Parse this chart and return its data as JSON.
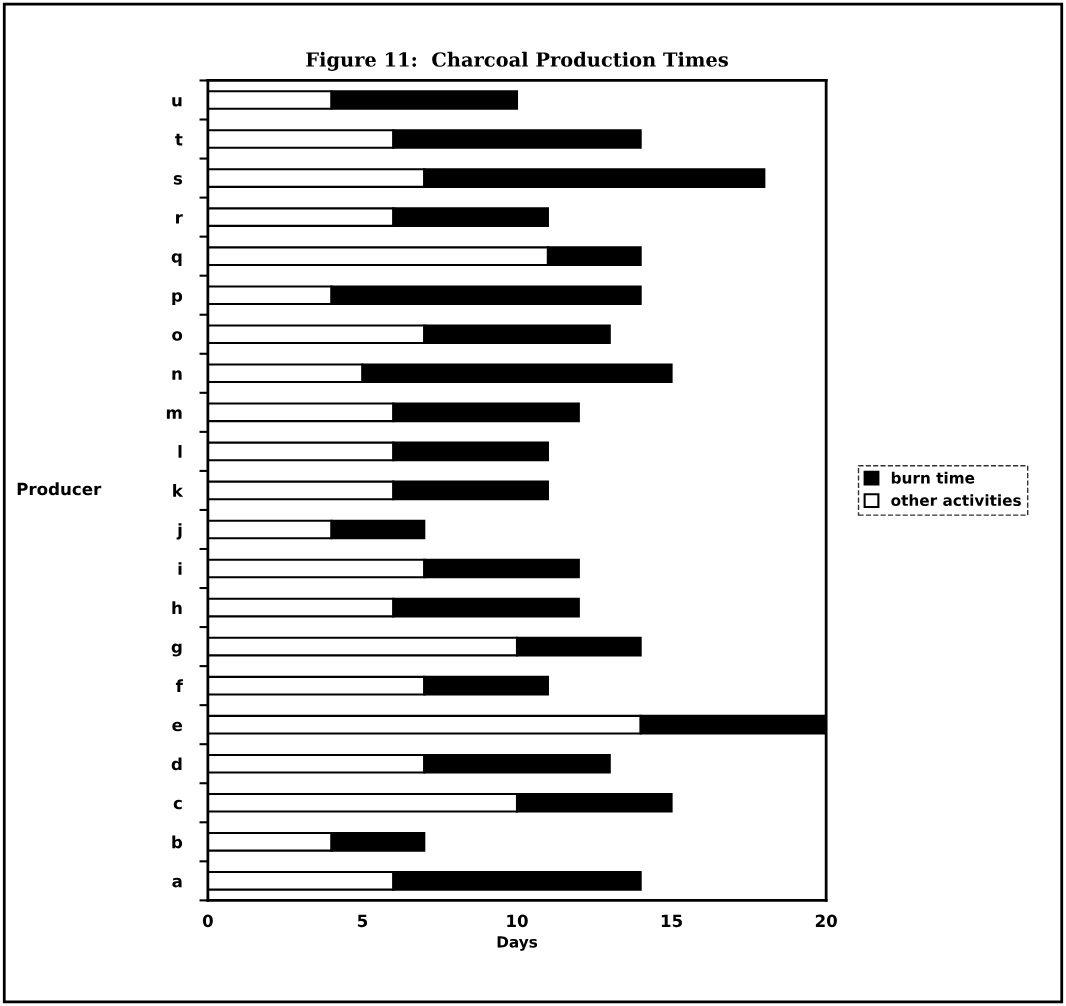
{
  "chart_data": {
    "type": "bar",
    "orientation": "horizontal",
    "stacked": true,
    "title": "Figure 11:  Charcoal Production Times",
    "xlabel": "Days",
    "ylabel": "Producer",
    "categories": [
      "u",
      "t",
      "s",
      "r",
      "q",
      "p",
      "o",
      "n",
      "m",
      "l",
      "k",
      "j",
      "i",
      "h",
      "g",
      "f",
      "e",
      "d",
      "c",
      "b",
      "a"
    ],
    "series": [
      {
        "name": "other activities",
        "color": "#ffffff",
        "values": [
          4,
          6,
          7,
          6,
          11,
          4,
          7,
          5,
          6,
          6,
          6,
          4,
          7,
          6,
          10,
          7,
          14,
          7,
          10,
          4,
          6
        ]
      },
      {
        "name": "burn time",
        "color": "#000000",
        "values": [
          6,
          8,
          11,
          5,
          3,
          10,
          6,
          10,
          6,
          5,
          5,
          3,
          5,
          6,
          4,
          4,
          6,
          6,
          5,
          3,
          8
        ]
      }
    ],
    "xlim": [
      0,
      20
    ],
    "xticks": [
      0,
      5,
      10,
      15,
      20
    ],
    "grid": false,
    "legend": "right"
  }
}
